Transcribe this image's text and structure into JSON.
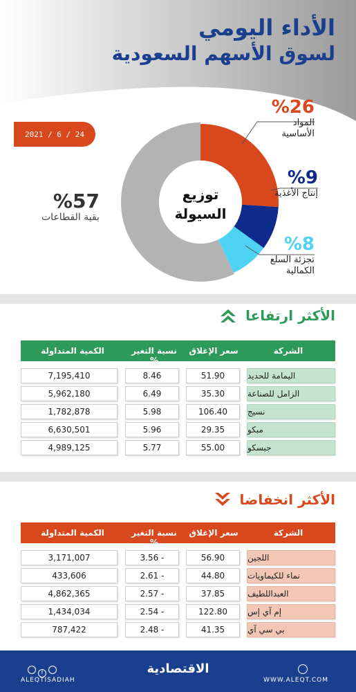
{
  "header": {
    "title_line1": "الأداء اليومي",
    "title_line2": "لسوق الأسهم السعودية",
    "date": "2021 / 6 / 24"
  },
  "colors": {
    "primary_blue": "#1b3f8f",
    "accent_orange": "#d9471c",
    "navy": "#0e2a8a",
    "cyan": "#4fd3f5",
    "gray": "#b3b3b3",
    "green": "#2e9a5a",
    "green_light": "#c4e3d0",
    "orange_light": "#f3c7b5"
  },
  "chart_data": {
    "type": "pie",
    "center_label_line1": "توزيع",
    "center_label_line2": "السيولة",
    "slices": [
      {
        "label_line1": "المواد",
        "label_line2": "الأساسية",
        "value": 26,
        "pct_text": "%26",
        "color": "#d9471c"
      },
      {
        "label_line1": "إنتاج الأغذية",
        "label_line2": "",
        "value": 9,
        "pct_text": "%9",
        "color": "#0e2a8a"
      },
      {
        "label_line1": "تجزئة السلع",
        "label_line2": "الكمالية",
        "value": 8,
        "pct_text": "%8",
        "color": "#4fd3f5"
      },
      {
        "label_line1": "بقية القطاعات",
        "label_line2": "",
        "value": 57,
        "pct_text": "%57",
        "color": "#b3b3b3"
      }
    ]
  },
  "gainers": {
    "title": "الأكثر ارتفاعا",
    "columns": {
      "company": "الشركة",
      "close": "سعر الإغلاق",
      "change": "نسبة التغير %",
      "volume": "الكمية المتداولة"
    },
    "rows": [
      {
        "company": "اليمامة للحديد",
        "close": "51.90",
        "change": "8.46",
        "volume": "7,195,410"
      },
      {
        "company": "الزامل للصناعة",
        "close": "35.30",
        "change": "6.49",
        "volume": "5,962,180"
      },
      {
        "company": "نسيج",
        "close": "106.40",
        "change": "5.98",
        "volume": "1,782,878"
      },
      {
        "company": "مبكو",
        "close": "29.35",
        "change": "5.96",
        "volume": "6,630,501"
      },
      {
        "company": "جبسكو",
        "close": "55.00",
        "change": "5.77",
        "volume": "4,989,125"
      }
    ]
  },
  "losers": {
    "title": "الأكثر انخفاضا",
    "columns": {
      "company": "الشركة",
      "close": "سعر الإغلاق",
      "change": "نسبة التغير %",
      "volume": "الكمية المتداولة"
    },
    "rows": [
      {
        "company": "اللجين",
        "close": "56.90",
        "change": "3.56 -",
        "volume": "3,171,007"
      },
      {
        "company": "نماء للكيماويات",
        "close": "44.80",
        "change": "2.61 -",
        "volume": "433,606"
      },
      {
        "company": "العبداللطيف",
        "close": "37.85",
        "change": "2.57 -",
        "volume": "4,862,365"
      },
      {
        "company": "إم آي إس",
        "close": "122.80",
        "change": "2.54 -",
        "volume": "1,434,034"
      },
      {
        "company": "بي سي آي",
        "close": "41.35",
        "change": "2.48 -",
        "volume": "787,422"
      }
    ]
  },
  "footer": {
    "brand": "الاقتصادية",
    "handle": "ALEQTISADIAH",
    "site": "WWW.ALEQT.COM"
  }
}
